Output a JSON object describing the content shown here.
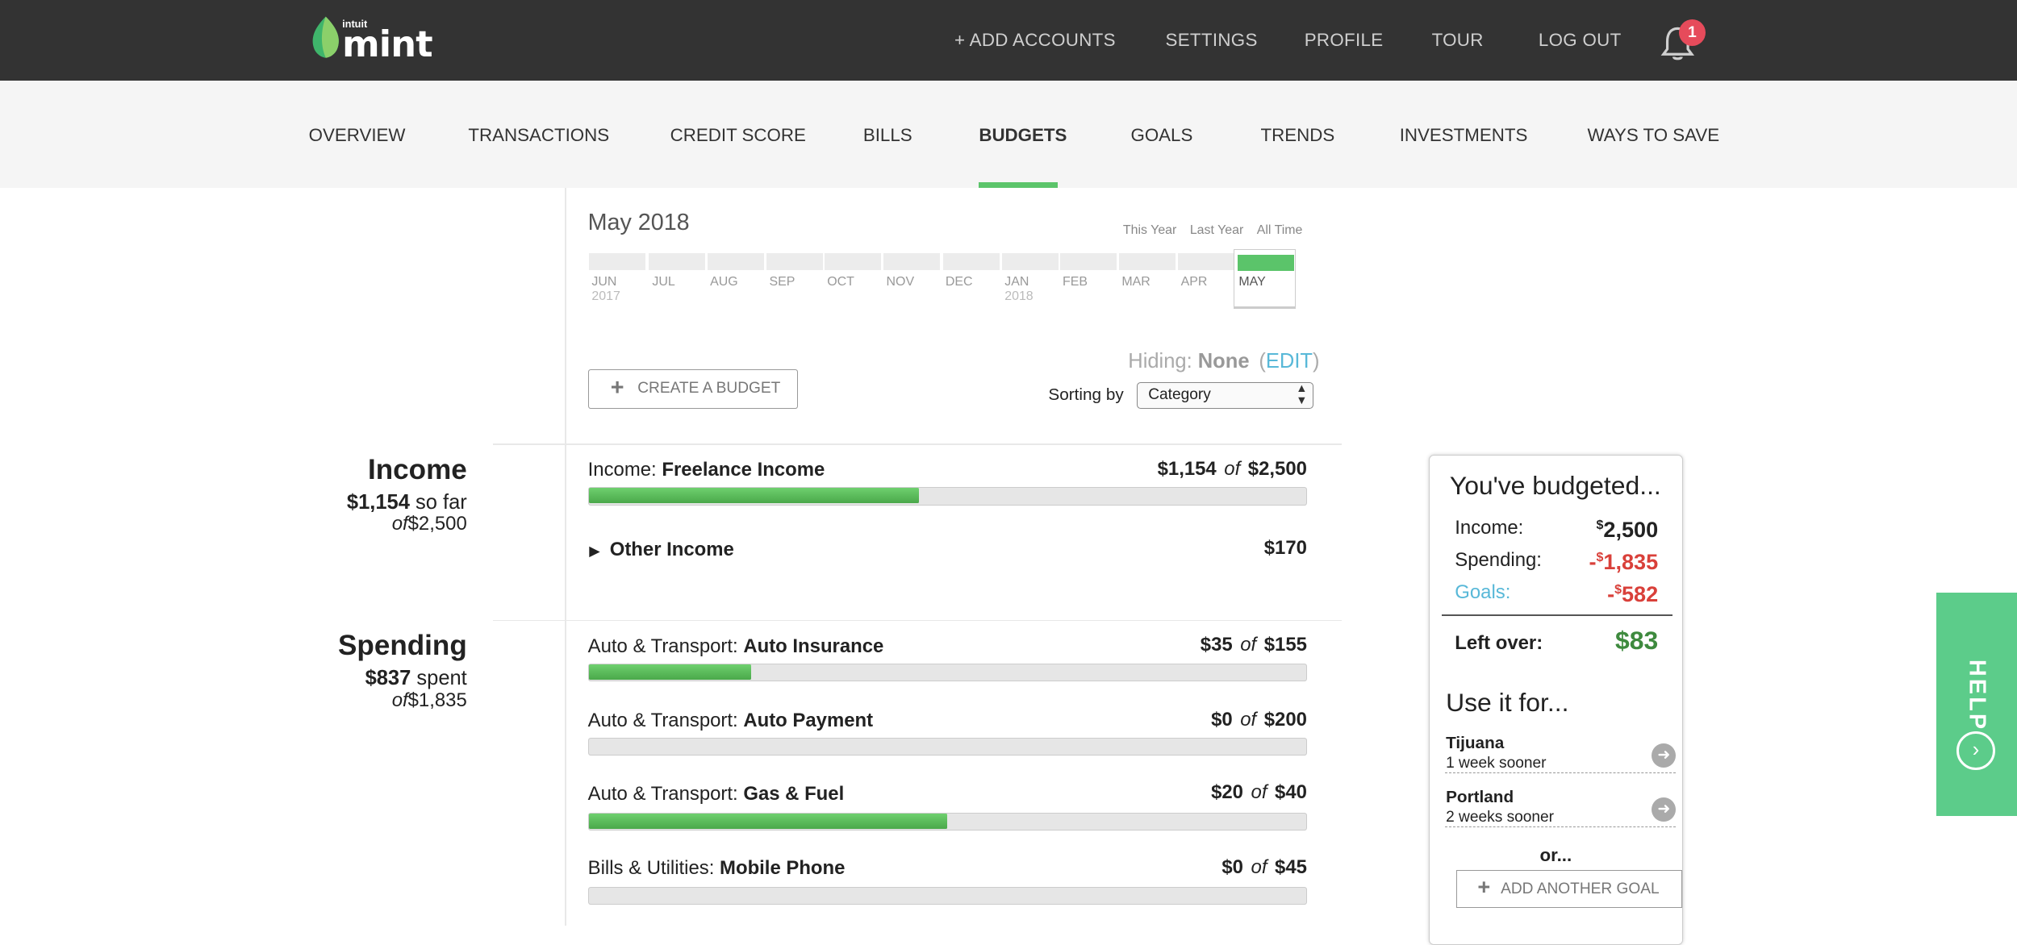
{
  "colors": {
    "topbar": "#333333",
    "accent": "#5bc46a",
    "negative": "#d9403a",
    "positive": "#3e8a3e",
    "link": "#58b8d8",
    "help": "#5ccc8a",
    "badge": "#e64b5b"
  },
  "header": {
    "logo_text": "mint",
    "logo_sub": "intuit",
    "nav": [
      "+ ADD ACCOUNTS",
      "SETTINGS",
      "PROFILE",
      "TOUR",
      "LOG OUT"
    ],
    "notification_count": "1"
  },
  "subnav": {
    "tabs": [
      "OVERVIEW",
      "TRANSACTIONS",
      "CREDIT SCORE",
      "BILLS",
      "BUDGETS",
      "GOALS",
      "TRENDS",
      "INVESTMENTS",
      "WAYS TO SAVE"
    ],
    "active": "BUDGETS"
  },
  "timeline": {
    "title": "May 2018",
    "ranges": [
      "This Year",
      "Last Year",
      "All Time"
    ],
    "months": [
      "JUN",
      "JUL",
      "AUG",
      "SEP",
      "OCT",
      "NOV",
      "DEC",
      "JAN",
      "FEB",
      "MAR",
      "APR",
      "MAY"
    ],
    "year_2017": "2017",
    "year_2018": "2018"
  },
  "controls": {
    "hiding_label": "Hiding:",
    "hiding_value": "None",
    "edit_open": "(",
    "edit_label": "EDIT",
    "edit_close": ")",
    "create_button": "CREATE A BUDGET",
    "sorting_label": "Sorting by",
    "sorting_value": "Category"
  },
  "income": {
    "title": "Income",
    "so_far_amount": "$1,154",
    "so_far_text": " so far",
    "of_text": "of",
    "total": "$2,500",
    "rows": [
      {
        "category": "Income:",
        "name": "Freelance Income",
        "spent": "$1,154",
        "of": "of",
        "budget": "$2,500",
        "progress": 0.46
      }
    ],
    "other": {
      "label": "Other Income",
      "amount": "$170",
      "arrow": "▶"
    }
  },
  "spending": {
    "title": "Spending",
    "spent_amount": "$837",
    "spent_text": " spent",
    "of_text": "of",
    "total": "$1,835",
    "rows": [
      {
        "category": "Auto & Transport:",
        "name": "Auto Insurance",
        "spent": "$35",
        "of": "of",
        "budget": "$155",
        "progress": 0.226
      },
      {
        "category": "Auto & Transport:",
        "name": "Auto Payment",
        "spent": "$0",
        "of": "of",
        "budget": "$200",
        "progress": 0
      },
      {
        "category": "Auto & Transport:",
        "name": "Gas & Fuel",
        "spent": "$20",
        "of": "of",
        "budget": "$40",
        "progress": 0.5
      },
      {
        "category": "Bills & Utilities:",
        "name": "Mobile Phone",
        "spent": "$0",
        "of": "of",
        "budget": "$45",
        "progress": 0
      }
    ]
  },
  "summary": {
    "title": "You've budgeted...",
    "income_label": "Income:",
    "income_sym": "$",
    "income_value": "2,500",
    "spending_label": "Spending:",
    "spending_sign": "-",
    "spending_sym": "$",
    "spending_value": "1,835",
    "goals_label": "Goals:",
    "goals_sign": "-",
    "goals_sym": "$",
    "goals_value": "582",
    "leftover_label": "Left over:",
    "leftover_value": "$83",
    "use_it_title": "Use it for...",
    "goals": [
      {
        "name": "Tijuana",
        "sub": "1 week sooner"
      },
      {
        "name": "Portland",
        "sub": "2 weeks sooner"
      }
    ],
    "or_text": "or...",
    "add_goal": "ADD ANOTHER GOAL"
  },
  "help": {
    "label": "HELP"
  }
}
